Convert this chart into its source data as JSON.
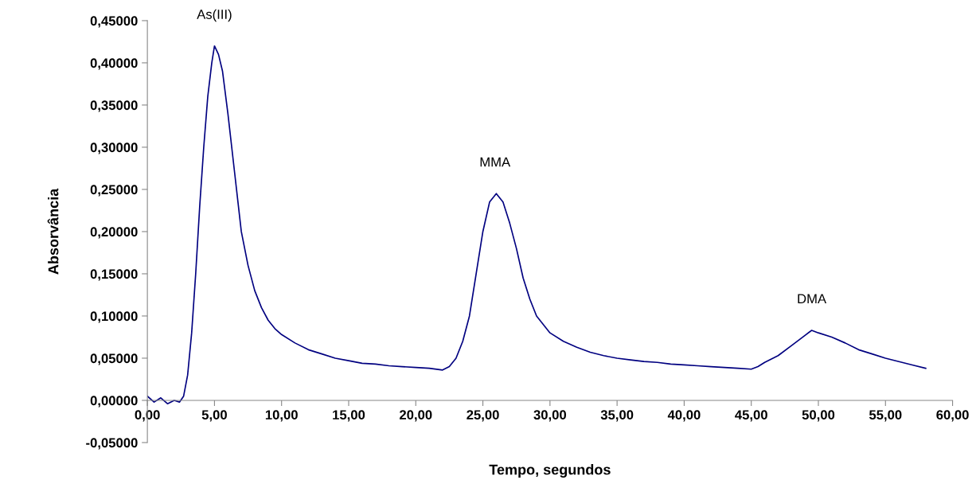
{
  "chart_data": {
    "type": "line",
    "xlabel": "Tempo, segundos",
    "ylabel": "Absorvância",
    "x": [
      0,
      0.5,
      1,
      1.5,
      2,
      2.4,
      2.7,
      3.0,
      3.3,
      3.6,
      3.9,
      4.2,
      4.5,
      4.8,
      5.0,
      5.3,
      5.6,
      6.0,
      6.5,
      7.0,
      7.5,
      8.0,
      8.5,
      9,
      9.5,
      10,
      11,
      12,
      13,
      14,
      15,
      16,
      17,
      18,
      19,
      20,
      21,
      22,
      22.5,
      23,
      23.5,
      24,
      24.5,
      25,
      25.5,
      26,
      26.5,
      27,
      27.5,
      28,
      28.5,
      29,
      30,
      31,
      32,
      33,
      34,
      35,
      36,
      37,
      38,
      39,
      40,
      41,
      42,
      43,
      44,
      45,
      45.5,
      46,
      47,
      48,
      49,
      49.5,
      50,
      51,
      52,
      53,
      54,
      55,
      56,
      57,
      58
    ],
    "series": [
      {
        "color": "#000080",
        "values": [
          0.005,
          -0.002,
          0.003,
          -0.004,
          0.0,
          -0.002,
          0.005,
          0.03,
          0.08,
          0.15,
          0.23,
          0.3,
          0.36,
          0.4,
          0.42,
          0.41,
          0.39,
          0.34,
          0.27,
          0.2,
          0.16,
          0.13,
          0.11,
          0.095,
          0.085,
          0.078,
          0.068,
          0.06,
          0.055,
          0.05,
          0.047,
          0.044,
          0.043,
          0.041,
          0.04,
          0.039,
          0.038,
          0.036,
          0.04,
          0.05,
          0.07,
          0.1,
          0.15,
          0.2,
          0.235,
          0.245,
          0.235,
          0.21,
          0.18,
          0.145,
          0.12,
          0.1,
          0.08,
          0.07,
          0.063,
          0.057,
          0.053,
          0.05,
          0.048,
          0.046,
          0.045,
          0.043,
          0.042,
          0.041,
          0.04,
          0.039,
          0.038,
          0.037,
          0.04,
          0.045,
          0.053,
          0.065,
          0.077,
          0.083,
          0.08,
          0.075,
          0.068,
          0.06,
          0.055,
          0.05,
          0.046,
          0.042,
          0.038
        ]
      }
    ],
    "xlim": [
      0,
      60
    ],
    "xticks": [
      {
        "value": 0,
        "label": "0,00"
      },
      {
        "value": 5,
        "label": "5,00"
      },
      {
        "value": 10,
        "label": "10,00"
      },
      {
        "value": 15,
        "label": "15,00"
      },
      {
        "value": 20,
        "label": "20,00"
      },
      {
        "value": 25,
        "label": "25,00"
      },
      {
        "value": 30,
        "label": "30,00"
      },
      {
        "value": 35,
        "label": "35,00"
      },
      {
        "value": 40,
        "label": "40,00"
      },
      {
        "value": 45,
        "label": "45,00"
      },
      {
        "value": 50,
        "label": "50,00"
      },
      {
        "value": 55,
        "label": "55,00"
      },
      {
        "value": 60,
        "label": "60,00"
      }
    ],
    "ylim": [
      -0.05,
      0.45
    ],
    "yticks": [
      {
        "value": -0.05,
        "label": "-0,05000"
      },
      {
        "value": 0,
        "label": "0,00000"
      },
      {
        "value": 0.05,
        "label": "0,05000"
      },
      {
        "value": 0.1,
        "label": "0,10000"
      },
      {
        "value": 0.15,
        "label": "0,15000"
      },
      {
        "value": 0.2,
        "label": "0,20000"
      },
      {
        "value": 0.25,
        "label": "0,25000"
      },
      {
        "value": 0.3,
        "label": "0,30000"
      },
      {
        "value": 0.35,
        "label": "0,35000"
      },
      {
        "value": 0.4,
        "label": "0,40000"
      },
      {
        "value": 0.45,
        "label": "0,45000"
      }
    ],
    "annotations": [
      {
        "text": "As(III)",
        "x": 5.0,
        "y": 0.42
      },
      {
        "text": "MMA",
        "x": 25.9,
        "y": 0.245
      },
      {
        "text": "DMA",
        "x": 49.5,
        "y": 0.083
      }
    ],
    "marker": "none",
    "line_style": "solid"
  }
}
